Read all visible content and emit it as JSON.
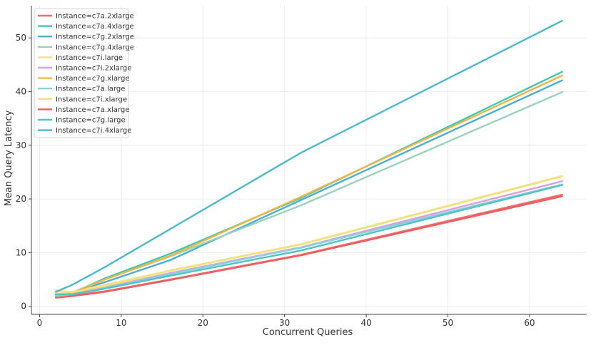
{
  "chart_data": {
    "type": "line",
    "title": "",
    "xlabel": "Concurrent Queries",
    "ylabel": "Mean Query Latency",
    "xlim": [
      -1,
      67
    ],
    "ylim": [
      -1.5,
      56
    ],
    "xticks": [
      0,
      10,
      20,
      30,
      40,
      50,
      60
    ],
    "yticks": [
      0,
      10,
      20,
      30,
      40,
      50
    ],
    "grid": true,
    "legend_position": "top-left",
    "x": [
      2,
      4,
      8,
      16,
      32,
      64
    ],
    "series": [
      {
        "name": "Instance=c7a.2xlarge",
        "color": "#f26b6b",
        "values": [
          1.7,
          2.0,
          2.8,
          5.0,
          9.6,
          20.8
        ]
      },
      {
        "name": "Instance=c7a.4xlarge",
        "color": "#3fc9b4",
        "values": [
          2.0,
          2.5,
          5.2,
          9.8,
          20.2,
          43.7
        ]
      },
      {
        "name": "Instance=c7g.2xlarge",
        "color": "#4aaed4",
        "values": [
          2.3,
          2.6,
          4.5,
          8.6,
          19.8,
          42.1
        ]
      },
      {
        "name": "Instance=c7g.4xlarge",
        "color": "#9ad2bd",
        "values": [
          2.0,
          2.6,
          5.0,
          9.3,
          18.8,
          39.9
        ]
      },
      {
        "name": "Instance=c7i.large",
        "color": "#f7df9a",
        "values": [
          2.5,
          2.7,
          4.0,
          6.7,
          11.6,
          24.3
        ]
      },
      {
        "name": "Instance=c7i.2xlarge",
        "color": "#d7a1dd",
        "values": [
          1.9,
          2.4,
          3.5,
          6.2,
          11.0,
          23.3
        ]
      },
      {
        "name": "Instance=c7g.xlarge",
        "color": "#f5b342",
        "values": [
          2.0,
          2.4,
          5.0,
          9.4,
          20.4,
          43.0
        ]
      },
      {
        "name": "Instance=c7a.large",
        "color": "#8ad0e2",
        "values": [
          1.9,
          2.2,
          3.4,
          6.0,
          10.9,
          22.7
        ]
      },
      {
        "name": "Instance=c7i.xlarge",
        "color": "#f2e27a",
        "values": [
          3.0,
          2.6,
          3.8,
          6.6,
          11.5,
          24.2
        ]
      },
      {
        "name": "Instance=c7a.xlarge",
        "color": "#ef5f5f",
        "values": [
          1.6,
          1.9,
          2.7,
          4.9,
          9.5,
          20.5
        ]
      },
      {
        "name": "Instance=c7g.large",
        "color": "#4fc4c1",
        "values": [
          2.2,
          2.2,
          3.3,
          5.7,
          10.4,
          22.6
        ]
      },
      {
        "name": "Instance=c7i.4xlarge",
        "color": "#4db9cc",
        "values": [
          2.7,
          4.0,
          7.3,
          14.4,
          28.6,
          53.2
        ]
      }
    ]
  }
}
